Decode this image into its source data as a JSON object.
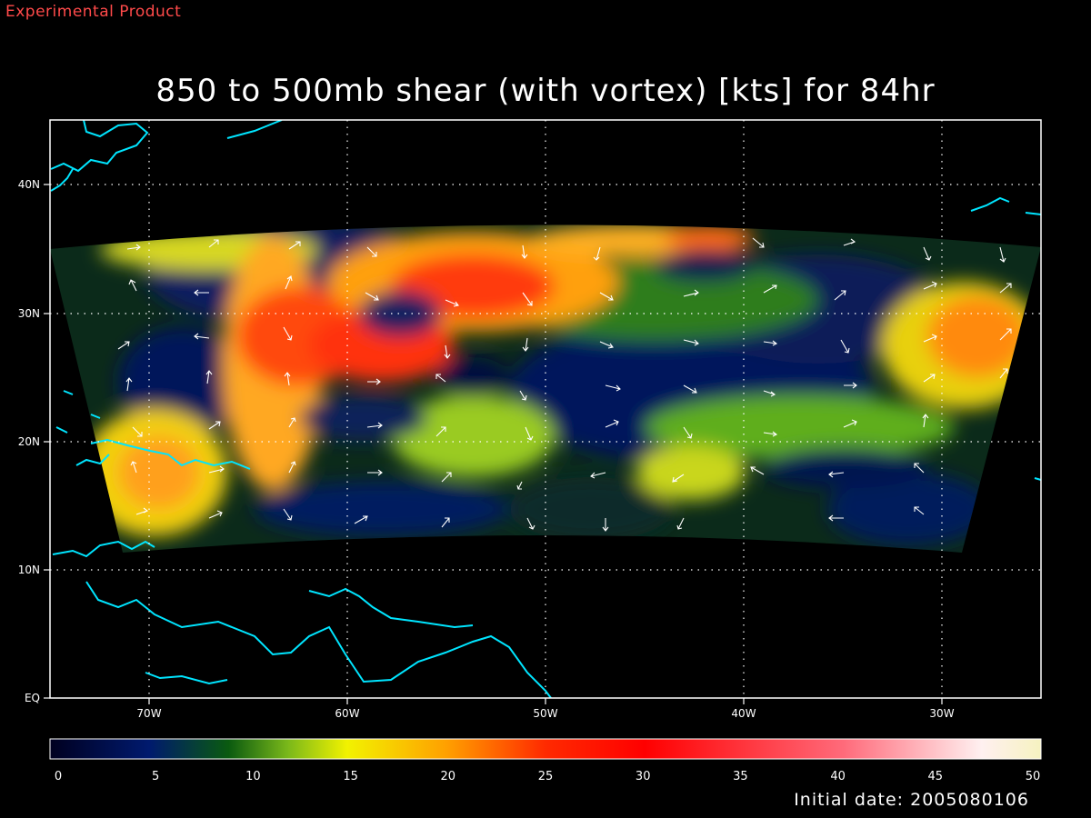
{
  "banner": "Experimental Product",
  "title": "850 to 500mb shear (with vortex) [kts] for 84hr",
  "footer": "Initial date: 2005080106",
  "map": {
    "lat_labels": [
      "EQ",
      "10N",
      "20N",
      "30N",
      "40N"
    ],
    "lon_labels": [
      "70W",
      "60W",
      "50W",
      "40W",
      "30W"
    ],
    "coastline_color": "#00e5ff",
    "gridline_color": "#ffffff"
  },
  "colorbar": {
    "min": 0,
    "max": 50,
    "tick_labels": [
      "0",
      "5",
      "10",
      "15",
      "20",
      "25",
      "30",
      "35",
      "40",
      "45",
      "50"
    ],
    "stops": [
      {
        "value": 0,
        "color": "#000020"
      },
      {
        "value": 5,
        "color": "#001a6e"
      },
      {
        "value": 9,
        "color": "#0a5a10"
      },
      {
        "value": 12,
        "color": "#7ab81a"
      },
      {
        "value": 15,
        "color": "#f2f200"
      },
      {
        "value": 20,
        "color": "#ffa000"
      },
      {
        "value": 25,
        "color": "#ff2a00"
      },
      {
        "value": 30,
        "color": "#ff0000"
      },
      {
        "value": 40,
        "color": "#ff6a7a"
      },
      {
        "value": 47,
        "color": "#fff0f0"
      },
      {
        "value": 50,
        "color": "#f6f2c0"
      }
    ]
  }
}
